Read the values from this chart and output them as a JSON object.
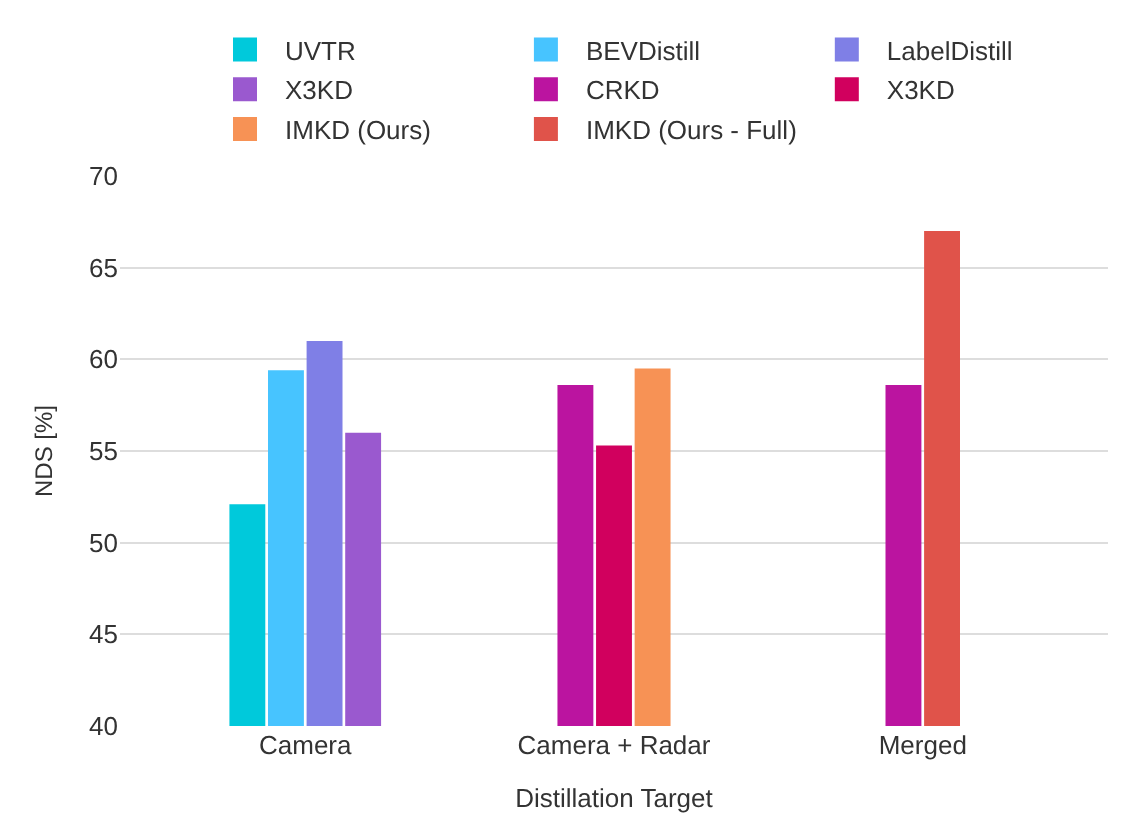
{
  "chart_data": {
    "type": "bar",
    "xlabel": "Distillation Target",
    "ylabel": "NDS [%]",
    "categories": [
      "Camera",
      "Camera + Radar",
      "Merged"
    ],
    "series": [
      {
        "name": "UVTR",
        "color": "#00c9db",
        "values": [
          52.1,
          null,
          null
        ]
      },
      {
        "name": "BEVDistill",
        "color": "#47c4ff",
        "values": [
          59.4,
          null,
          null
        ]
      },
      {
        "name": "LabelDistill",
        "color": "#7f7fe6",
        "values": [
          61.0,
          null,
          null
        ]
      },
      {
        "name": "X3KD",
        "color": "#9a59cf",
        "values": [
          56.0,
          null,
          null
        ]
      },
      {
        "name": "CRKD",
        "color": "#bb14a0",
        "values": [
          null,
          58.6,
          58.6
        ]
      },
      {
        "name": "X3KD",
        "color": "#d1005e",
        "values": [
          null,
          55.3,
          null
        ]
      },
      {
        "name": "IMKD (Ours)",
        "color": "#f79255",
        "values": [
          null,
          59.5,
          null
        ]
      },
      {
        "name": "IMKD (Ours - Full)",
        "color": "#e0534a",
        "values": [
          null,
          null,
          67.0
        ]
      }
    ],
    "ylim": [
      40,
      70
    ],
    "yticks": [
      40,
      45,
      50,
      55,
      60,
      65,
      70
    ],
    "grid": "y",
    "legend": "top"
  }
}
